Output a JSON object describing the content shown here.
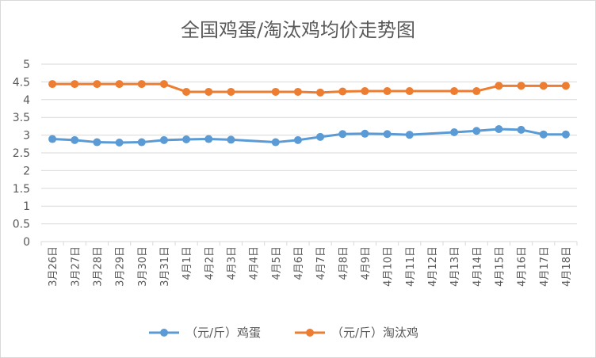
{
  "chart_data": {
    "type": "line",
    "title": "全国鸡蛋/淘汰鸡均价走势图",
    "categories": [
      "3月26日",
      "3月27日",
      "3月28日",
      "3月29日",
      "3月30日",
      "3月31日",
      "4月1日",
      "4月2日",
      "4月3日",
      "4月4日",
      "4月5日",
      "4月6日",
      "4月7日",
      "4月8日",
      "4月9日",
      "4月10日",
      "4月11日",
      "4月12日",
      "4月13日",
      "4月14日",
      "4月15日",
      "4月16日",
      "4月17日",
      "4月18日"
    ],
    "ylim": [
      0,
      5
    ],
    "yticks": [
      "0",
      "0.5",
      "1",
      "1.5",
      "2",
      "2.5",
      "3",
      "3.5",
      "4",
      "4.5",
      "5"
    ],
    "grid": true,
    "legend_position": "bottom",
    "series": [
      {
        "name": "（元/斤）鸡蛋",
        "color": "#5B9BD5",
        "values": [
          2.89,
          2.86,
          2.8,
          2.79,
          2.8,
          2.86,
          2.88,
          2.89,
          2.87,
          null,
          2.8,
          2.86,
          2.95,
          3.03,
          3.04,
          3.03,
          3.01,
          null,
          3.08,
          3.12,
          3.17,
          3.15,
          3.02,
          3.02
        ]
      },
      {
        "name": "（元/斤）淘汰鸡",
        "color": "#ED7D31",
        "values": [
          4.44,
          4.44,
          4.44,
          4.44,
          4.44,
          4.44,
          4.22,
          4.22,
          4.22,
          null,
          4.22,
          4.22,
          4.2,
          4.23,
          4.24,
          4.24,
          4.24,
          null,
          4.24,
          4.24,
          4.39,
          4.39,
          4.39,
          4.39
        ]
      }
    ]
  }
}
